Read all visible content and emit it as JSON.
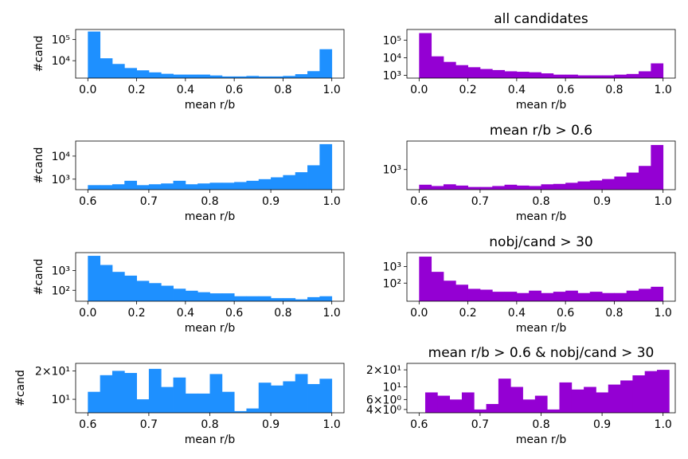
{
  "colors": {
    "left": "#1e90ff",
    "right": "#9400d3"
  },
  "chart_data": [
    {
      "type": "bar",
      "subplot": "row1-left",
      "title": "",
      "xlabel": "mean r/b",
      "ylabel": "#cand",
      "xlim": [
        -0.05,
        1.05
      ],
      "xticks": [
        0.0,
        0.2,
        0.4,
        0.6,
        0.8,
        1.0
      ],
      "xtick_labels": [
        "0.0",
        "0.2",
        "0.4",
        "0.6",
        "0.8",
        "1.0"
      ],
      "yscale": "log",
      "ylim": [
        1500,
        300000
      ],
      "yticks": [
        10000,
        100000
      ],
      "ytick_labels": [
        "10⁴",
        "10⁵"
      ],
      "bin_edges": [
        0.0,
        0.05,
        0.1,
        0.15,
        0.2,
        0.25,
        0.3,
        0.35,
        0.4,
        0.45,
        0.5,
        0.55,
        0.6,
        0.65,
        0.7,
        0.75,
        0.8,
        0.85,
        0.9,
        0.95,
        1.0
      ],
      "values": [
        240000,
        13000,
        7000,
        4500,
        3500,
        2800,
        2400,
        2200,
        2200,
        2200,
        2000,
        1800,
        1800,
        1900,
        1800,
        1800,
        1900,
        2300,
        3200,
        35000
      ],
      "color": "left"
    },
    {
      "type": "bar",
      "subplot": "row1-right",
      "title": "all candidates",
      "xlabel": "mean r/b",
      "ylabel": "",
      "xlim": [
        -0.05,
        1.05
      ],
      "xticks": [
        0.0,
        0.2,
        0.4,
        0.6,
        0.8,
        1.0
      ],
      "xtick_labels": [
        "0.0",
        "0.2",
        "0.4",
        "0.6",
        "0.8",
        "1.0"
      ],
      "yscale": "log",
      "ylim": [
        700,
        400000
      ],
      "yticks": [
        1000,
        10000,
        100000
      ],
      "ytick_labels": [
        "10³",
        "10⁴",
        "10⁵"
      ],
      "bin_edges": [
        0.0,
        0.05,
        0.1,
        0.15,
        0.2,
        0.25,
        0.3,
        0.35,
        0.4,
        0.45,
        0.5,
        0.55,
        0.6,
        0.65,
        0.7,
        0.75,
        0.8,
        0.85,
        0.9,
        0.95,
        1.0
      ],
      "values": [
        250000,
        12000,
        5800,
        3800,
        2900,
        2300,
        2000,
        1700,
        1600,
        1500,
        1300,
        1100,
        1100,
        1000,
        1000,
        1000,
        1100,
        1200,
        1700,
        4800
      ],
      "color": "right"
    },
    {
      "type": "bar",
      "subplot": "row2-left",
      "title": "",
      "xlabel": "mean r/b",
      "ylabel": "#cand",
      "xlim": [
        0.58,
        1.02
      ],
      "xticks": [
        0.6,
        0.7,
        0.8,
        0.9,
        1.0
      ],
      "xtick_labels": [
        "0.6",
        "0.7",
        "0.8",
        "0.9",
        "1.0"
      ],
      "yscale": "log",
      "ylim": [
        350,
        45000
      ],
      "yticks": [
        1000,
        10000
      ],
      "ytick_labels": [
        "10³",
        "10⁴"
      ],
      "bin_edges": [
        0.6,
        0.62,
        0.64,
        0.66,
        0.68,
        0.7,
        0.72,
        0.74,
        0.76,
        0.78,
        0.8,
        0.82,
        0.84,
        0.86,
        0.88,
        0.9,
        0.92,
        0.94,
        0.96,
        0.98,
        1.0
      ],
      "values": [
        550,
        550,
        600,
        850,
        550,
        600,
        650,
        850,
        600,
        650,
        700,
        700,
        750,
        850,
        1000,
        1200,
        1500,
        2000,
        4000,
        33000
      ],
      "color": "left"
    },
    {
      "type": "bar",
      "subplot": "row2-right",
      "title": "mean r/b > 0.6",
      "xlabel": "mean r/b",
      "ylabel": "",
      "xlim": [
        0.58,
        1.02
      ],
      "xticks": [
        0.6,
        0.7,
        0.8,
        0.9,
        1.0
      ],
      "xtick_labels": [
        "0.6",
        "0.7",
        "0.8",
        "0.9",
        "1.0"
      ],
      "yscale": "log",
      "ylim": [
        230,
        8000
      ],
      "yticks": [
        1000
      ],
      "ytick_labels": [
        "10³"
      ],
      "bin_edges": [
        0.6,
        0.62,
        0.64,
        0.66,
        0.68,
        0.7,
        0.72,
        0.74,
        0.76,
        0.78,
        0.8,
        0.82,
        0.84,
        0.86,
        0.88,
        0.9,
        0.92,
        0.94,
        0.96,
        0.98,
        1.0
      ],
      "values": [
        330,
        300,
        340,
        310,
        280,
        280,
        300,
        330,
        310,
        300,
        340,
        350,
        380,
        420,
        450,
        500,
        600,
        800,
        1300,
        6000
      ],
      "color": "right"
    },
    {
      "type": "bar",
      "subplot": "row3-left",
      "title": "",
      "xlabel": "mean r/b",
      "ylabel": "#cand",
      "xlim": [
        -0.05,
        1.05
      ],
      "xticks": [
        0.0,
        0.2,
        0.4,
        0.6,
        0.8,
        1.0
      ],
      "xtick_labels": [
        "0.0",
        "0.2",
        "0.4",
        "0.6",
        "0.8",
        "1.0"
      ],
      "yscale": "log",
      "ylim": [
        28,
        8000
      ],
      "yticks": [
        100,
        1000
      ],
      "ytick_labels": [
        "10²",
        "10³"
      ],
      "bin_edges": [
        0.0,
        0.05,
        0.1,
        0.15,
        0.2,
        0.25,
        0.3,
        0.35,
        0.4,
        0.45,
        0.5,
        0.55,
        0.6,
        0.65,
        0.7,
        0.75,
        0.8,
        0.85,
        0.9,
        0.95,
        1.0
      ],
      "values": [
        5500,
        1900,
        850,
        550,
        300,
        230,
        170,
        120,
        95,
        80,
        70,
        70,
        50,
        50,
        50,
        40,
        40,
        35,
        45,
        50
      ],
      "color": "left"
    },
    {
      "type": "bar",
      "subplot": "row3-right",
      "title": "nobj/cand > 30",
      "xlabel": "mean r/b",
      "ylabel": "",
      "xlim": [
        -0.05,
        1.05
      ],
      "xticks": [
        0.0,
        0.2,
        0.4,
        0.6,
        0.8,
        1.0
      ],
      "xtick_labels": [
        "0.0",
        "0.2",
        "0.4",
        "0.6",
        "0.8",
        "1.0"
      ],
      "yscale": "log",
      "ylim": [
        8,
        7000
      ],
      "yticks": [
        100,
        1000
      ],
      "ytick_labels": [
        "10²",
        "10³"
      ],
      "bin_edges": [
        0.0,
        0.05,
        0.1,
        0.15,
        0.2,
        0.25,
        0.3,
        0.35,
        0.4,
        0.45,
        0.5,
        0.55,
        0.6,
        0.65,
        0.7,
        0.75,
        0.8,
        0.85,
        0.9,
        0.95,
        1.0
      ],
      "values": [
        4000,
        480,
        140,
        80,
        45,
        40,
        30,
        30,
        25,
        35,
        25,
        30,
        35,
        25,
        30,
        25,
        25,
        35,
        45,
        60
      ],
      "color": "right"
    },
    {
      "type": "bar",
      "subplot": "row4-left",
      "title": "",
      "xlabel": "mean r/b",
      "ylabel": "#cand",
      "xlim": [
        0.58,
        1.02
      ],
      "xticks": [
        0.6,
        0.7,
        0.8,
        0.9,
        1.0
      ],
      "xtick_labels": [
        "0.6",
        "0.7",
        "0.8",
        "0.9",
        "1.0"
      ],
      "yscale": "log",
      "ylim": [
        7.2,
        24
      ],
      "yticks": [
        10,
        20
      ],
      "ytick_labels": [
        "10¹",
        "2×10¹"
      ],
      "bin_edges": [
        0.6,
        0.62,
        0.64,
        0.66,
        0.68,
        0.7,
        0.72,
        0.74,
        0.76,
        0.78,
        0.8,
        0.82,
        0.84,
        0.86,
        0.88,
        0.9,
        0.92,
        0.94,
        0.96,
        0.98,
        1.0
      ],
      "values": [
        12,
        18,
        20,
        19,
        10,
        21,
        13.5,
        17,
        11.5,
        11.5,
        18.5,
        12,
        7.5,
        8,
        15,
        14,
        15.5,
        18.5,
        14.5,
        16.5
      ],
      "color": "left"
    },
    {
      "type": "bar",
      "subplot": "row4-right",
      "title": "mean r/b > 0.6 & nobj/cand > 30",
      "xlabel": "mean r/b",
      "ylabel": "",
      "xlim": [
        0.58,
        1.02
      ],
      "xticks": [
        0.6,
        0.7,
        0.8,
        0.9,
        1.0
      ],
      "xtick_labels": [
        "0.6",
        "0.7",
        "0.8",
        "0.9",
        "1.0"
      ],
      "yscale": "log",
      "ylim": [
        3.5,
        26
      ],
      "yticks": [
        4,
        6,
        10,
        20
      ],
      "ytick_labels": [
        "4×10⁰",
        "6×10⁰",
        "10¹",
        "2×10¹"
      ],
      "bin_edges": [
        0.61,
        0.63,
        0.65,
        0.67,
        0.69,
        0.71,
        0.73,
        0.75,
        0.77,
        0.79,
        0.81,
        0.83,
        0.85,
        0.87,
        0.89,
        0.91,
        0.93,
        0.95,
        0.97,
        0.99
      ],
      "values": [
        8,
        7,
        6,
        8,
        4,
        5,
        14,
        10,
        6,
        7,
        4,
        12,
        9,
        10,
        8,
        11,
        13,
        16,
        19,
        20
      ],
      "color": "right"
    }
  ]
}
